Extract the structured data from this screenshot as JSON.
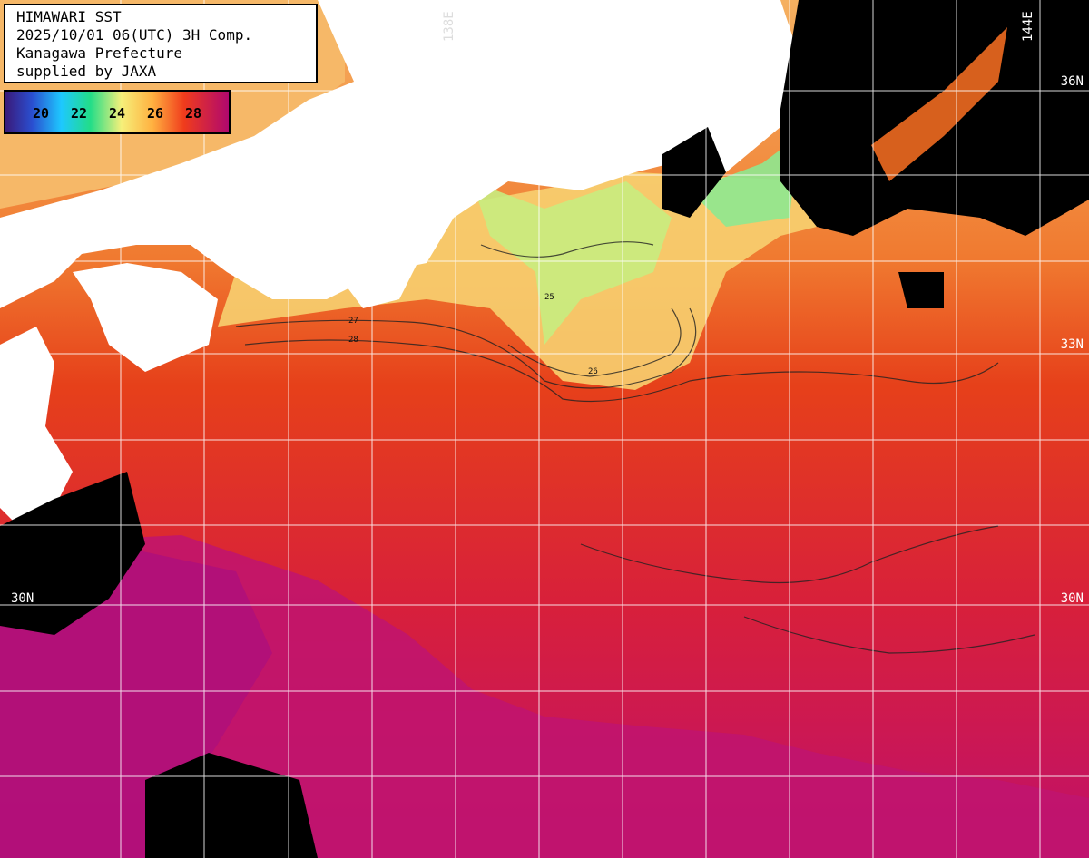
{
  "header": {
    "line1": "HIMAWARI SST",
    "line2": "2025/10/01 06(UTC) 3H Comp.",
    "line3": "Kanagawa Prefecture",
    "line4": "supplied by JAXA"
  },
  "colorbar": {
    "ticks": [
      "20",
      "22",
      "24",
      "26",
      "28"
    ],
    "colors": [
      "#3a1a7a",
      "#1e6fff",
      "#22dd88",
      "#f6f07a",
      "#ff8a2a",
      "#e22020",
      "#b0086e"
    ]
  },
  "grid_labels": {
    "lat_36": "36N",
    "lat_33": "33N",
    "lat_30_left": "30N",
    "lat_30_right": "30N",
    "lon_144": "144E",
    "lon_138": "138E"
  },
  "contour_labels": [
    "25",
    "26",
    "27",
    "28"
  ],
  "colors": {
    "land": "#ffffff",
    "no_data": "#000000",
    "warm_sea": "#e83a14",
    "hot_sea": "#c8105e",
    "cool_sea": "#f4c070",
    "grid": "#ffffff"
  }
}
